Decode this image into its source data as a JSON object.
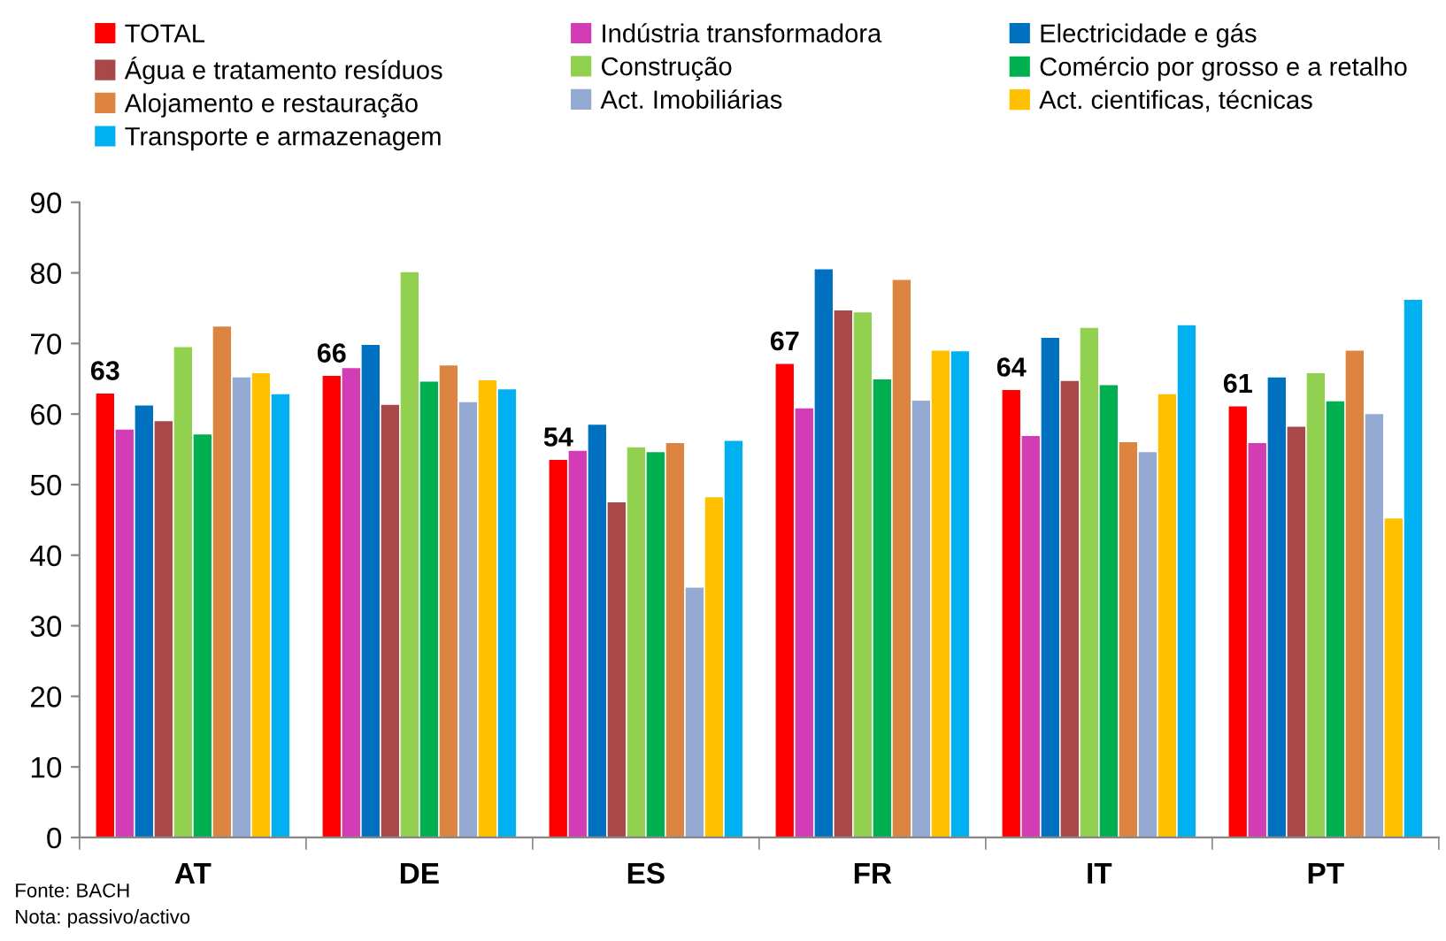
{
  "chart_data": {
    "type": "bar",
    "categories": [
      "AT",
      "DE",
      "ES",
      "FR",
      "IT",
      "PT"
    ],
    "series": [
      {
        "name": "TOTAL",
        "color": "#ff0000",
        "values": [
          63.0,
          65.5,
          53.6,
          67.2,
          63.5,
          61.2
        ],
        "value_labels": [
          "63",
          "66",
          "54",
          "67",
          "64",
          "61"
        ]
      },
      {
        "name": "Indústria transformadora",
        "color": "#d23cb4",
        "values": [
          57.9,
          66.6,
          54.9,
          60.9,
          57.0,
          56.0
        ]
      },
      {
        "name": "Electricidade e gás",
        "color": "#0070c0",
        "values": [
          61.3,
          69.9,
          58.6,
          80.6,
          70.9,
          65.3
        ]
      },
      {
        "name": "Água e tratamento resíduos",
        "color": "#a84848",
        "values": [
          59.1,
          61.4,
          47.6,
          74.8,
          64.8,
          58.3
        ]
      },
      {
        "name": "Construção",
        "color": "#92d050",
        "values": [
          69.6,
          80.2,
          55.4,
          74.5,
          72.3,
          65.9
        ]
      },
      {
        "name": "Comércio por grosso e a retalho",
        "color": "#00b050",
        "values": [
          57.2,
          64.7,
          54.7,
          65.0,
          64.2,
          61.9
        ]
      },
      {
        "name": "Alojamento e restauração",
        "color": "#dd8440",
        "values": [
          72.5,
          67.0,
          56.0,
          79.1,
          56.1,
          69.1
        ]
      },
      {
        "name": "Act. Imobiliárias",
        "color": "#95aad2",
        "values": [
          65.3,
          61.8,
          35.5,
          62.0,
          54.7,
          60.1
        ]
      },
      {
        "name": "Act. cientificas, técnicas",
        "color": "#ffc000",
        "values": [
          65.9,
          64.9,
          48.3,
          69.1,
          62.9,
          45.3
        ]
      },
      {
        "name": "Transporte e armazenagem",
        "color": "#00b0f0",
        "values": [
          62.9,
          63.6,
          56.3,
          69.0,
          72.7,
          76.3
        ]
      }
    ],
    "ylim": [
      0,
      90
    ],
    "yticks": [
      0,
      10,
      20,
      30,
      40,
      50,
      60,
      70,
      80,
      90
    ],
    "grid": false,
    "legend": "top",
    "annotations": [
      "Fonte: BACH",
      "Nota: passivo/activo"
    ]
  }
}
